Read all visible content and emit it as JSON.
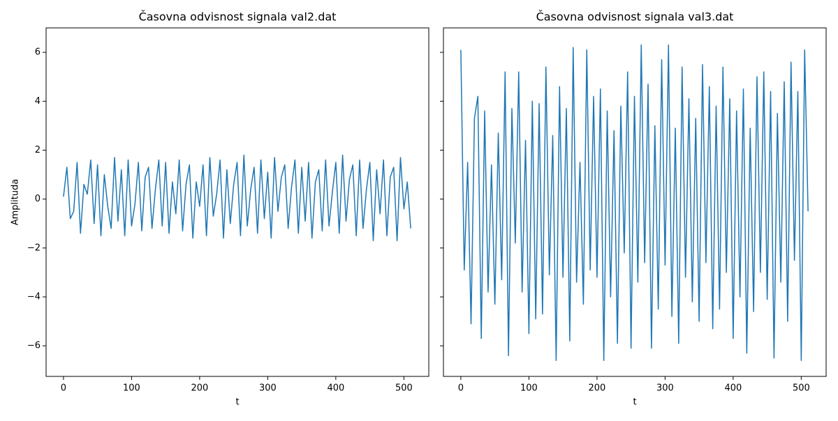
{
  "chart_data": [
    {
      "type": "line",
      "title": "Časovna odvisnost signala val2.dat",
      "x_label": "t",
      "y_label": "Amplituda",
      "x": [
        0,
        5,
        10,
        15,
        20,
        25,
        30,
        35,
        40,
        45,
        50,
        55,
        60,
        65,
        70,
        75,
        80,
        85,
        90,
        95,
        100,
        105,
        110,
        115,
        120,
        125,
        130,
        135,
        140,
        145,
        150,
        155,
        160,
        165,
        170,
        175,
        180,
        185,
        190,
        195,
        200,
        205,
        210,
        215,
        220,
        225,
        230,
        235,
        240,
        245,
        250,
        255,
        260,
        265,
        270,
        275,
        280,
        285,
        290,
        295,
        300,
        305,
        310,
        315,
        320,
        325,
        330,
        335,
        340,
        345,
        350,
        355,
        360,
        365,
        370,
        375,
        380,
        385,
        390,
        395,
        400,
        405,
        410,
        415,
        420,
        425,
        430,
        435,
        440,
        445,
        450,
        455,
        460,
        465,
        470,
        475,
        480,
        485,
        490,
        495,
        500,
        505,
        510
      ],
      "series": [
        {
          "color": "#1f77b4",
          "values": [
            0.1,
            1.3,
            -0.8,
            -0.5,
            1.5,
            -1.4,
            0.6,
            0.2,
            1.6,
            -1.0,
            1.4,
            -1.5,
            1.0,
            -0.3,
            -1.2,
            1.7,
            -0.9,
            1.2,
            -1.5,
            1.6,
            -1.1,
            -0.2,
            1.5,
            -1.3,
            0.9,
            1.3,
            -1.2,
            0.4,
            1.6,
            -1.1,
            1.5,
            -1.4,
            0.7,
            -0.6,
            1.6,
            -1.3,
            0.6,
            1.4,
            -1.6,
            0.7,
            -0.3,
            1.4,
            -1.5,
            1.7,
            -0.7,
            0.2,
            1.6,
            -1.6,
            1.2,
            -1.0,
            0.6,
            1.5,
            -1.5,
            1.8,
            -1.1,
            0.4,
            1.3,
            -1.4,
            1.6,
            -0.8,
            1.1,
            -1.6,
            1.7,
            -0.5,
            0.9,
            1.4,
            -1.2,
            0.5,
            1.6,
            -1.4,
            1.3,
            -0.9,
            1.5,
            -1.6,
            0.7,
            1.2,
            -1.3,
            1.6,
            -1.1,
            0.3,
            1.5,
            -1.4,
            1.8,
            -0.9,
            0.8,
            1.4,
            -1.5,
            1.6,
            -1.2,
            0.4,
            1.5,
            -1.7,
            1.2,
            -0.6,
            1.6,
            -1.5,
            0.9,
            1.3,
            -1.7,
            1.7,
            -0.4,
            0.7,
            -1.2
          ]
        }
      ],
      "xlim": [
        -25.55,
        536.55
      ],
      "xticks": [
        0,
        100,
        200,
        300,
        400,
        500
      ],
      "ylim": [
        -7.25,
        7.0
      ],
      "yticks": [
        {
          "value": -6,
          "label": "−6"
        },
        {
          "value": -4,
          "label": "−4"
        },
        {
          "value": -2,
          "label": "−2"
        },
        0,
        2,
        4,
        6
      ]
    },
    {
      "type": "line",
      "title": "Časovna odvisnost signala val3.dat",
      "x_label": "t",
      "x": [
        0,
        5,
        10,
        15,
        20,
        25,
        30,
        35,
        40,
        45,
        50,
        55,
        60,
        65,
        70,
        75,
        80,
        85,
        90,
        95,
        100,
        105,
        110,
        115,
        120,
        125,
        130,
        135,
        140,
        145,
        150,
        155,
        160,
        165,
        170,
        175,
        180,
        185,
        190,
        195,
        200,
        205,
        210,
        215,
        220,
        225,
        230,
        235,
        240,
        245,
        250,
        255,
        260,
        265,
        270,
        275,
        280,
        285,
        290,
        295,
        300,
        305,
        310,
        315,
        320,
        325,
        330,
        335,
        340,
        345,
        350,
        355,
        360,
        365,
        370,
        375,
        380,
        385,
        390,
        395,
        400,
        405,
        410,
        415,
        420,
        425,
        430,
        435,
        440,
        445,
        450,
        455,
        460,
        465,
        470,
        475,
        480,
        485,
        490,
        495,
        500,
        505,
        510
      ],
      "series": [
        {
          "color": "#1f77b4",
          "values": [
            6.1,
            -2.9,
            1.5,
            -5.1,
            3.3,
            4.2,
            -5.7,
            3.6,
            -3.8,
            1.4,
            -4.3,
            2.7,
            -3.3,
            5.2,
            -6.4,
            3.7,
            -1.8,
            5.2,
            -3.8,
            2.4,
            -5.5,
            4.0,
            -4.9,
            3.9,
            -4.7,
            5.4,
            -3.1,
            2.6,
            -6.6,
            4.6,
            -3.2,
            3.7,
            -5.8,
            6.2,
            -3.4,
            1.5,
            -4.3,
            6.1,
            -2.9,
            4.2,
            -3.2,
            4.5,
            -6.6,
            3.6,
            -4.0,
            2.8,
            -5.9,
            3.8,
            -2.2,
            5.2,
            -6.1,
            4.2,
            -3.4,
            6.3,
            -2.6,
            4.7,
            -6.1,
            3.0,
            -4.5,
            5.7,
            -2.7,
            6.3,
            -4.8,
            2.9,
            -5.9,
            5.4,
            -3.2,
            4.1,
            -4.2,
            3.3,
            -5.0,
            5.5,
            -2.6,
            4.6,
            -5.3,
            3.8,
            -4.5,
            5.4,
            -3.0,
            4.1,
            -5.7,
            3.6,
            -4.0,
            4.5,
            -6.3,
            2.9,
            -4.6,
            5.0,
            -3.0,
            5.2,
            -4.1,
            4.4,
            -6.5,
            3.5,
            -3.4,
            4.8,
            -5.0,
            5.6,
            -2.5,
            4.4,
            -6.6,
            6.1,
            -0.5
          ]
        }
      ],
      "xlim": [
        -25.55,
        536.55
      ],
      "xticks": [
        0,
        100,
        200,
        300,
        400,
        500
      ],
      "ylim": [
        -7.25,
        7.0
      ],
      "yticks": [
        -6,
        -4,
        -2,
        0,
        2,
        4,
        6
      ]
    }
  ]
}
